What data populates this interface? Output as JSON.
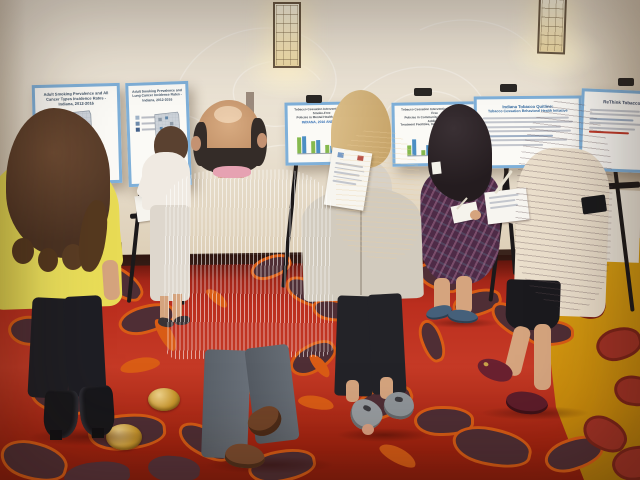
{
  "posters": {
    "p1": {
      "title_lines": [
        "Adult Smoking Prevalence and All",
        "Cancer Types Incidence Rates -",
        "Indiana, 2012-2016"
      ],
      "figure": "indiana-county-map"
    },
    "p2": {
      "title_lines": [
        "Adult Smoking Prevalence and",
        "Lung Cancer Incidence Rates -",
        "Indiana, 2012-2016"
      ],
      "figure": "indiana-county-map"
    },
    "p3": {
      "title_lines": [
        "Tobacco Cessation Interventions and Smoke-Free",
        "Policies in Mental Health Facilities"
      ],
      "subtitle": "INDIANA, 2016 AND 2018",
      "figure": "grouped-bar-chart",
      "bars": [
        [
          62,
          66
        ],
        [
          48,
          50
        ],
        [
          30,
          26
        ],
        [
          22,
          40
        ],
        [
          34,
          58
        ]
      ]
    },
    "p4": {
      "title_lines": [
        "Tobacco Cessation Interventions and Smoke-Free",
        "Policies in Community Mental Health and Addiction",
        "Treatment Facilities, Indiana 2016 vs. May 2019"
      ],
      "figure": "grouped-bar-chart",
      "bars": [
        [
          40,
          62
        ],
        [
          18,
          38
        ],
        [
          14,
          30
        ],
        [
          36,
          58
        ]
      ]
    },
    "p5": {
      "title_lines": [
        "Indiana Tobacco Quitline:",
        "Tobacco Cessation Behavioral Health Initiative"
      ],
      "figure": "text-summary"
    },
    "p6": {
      "title_lines": [
        "ReThink Tobacco"
      ],
      "figure": "text-bullets"
    }
  },
  "colors": {
    "bar_green": "#86b94e",
    "bar_blue": "#4d8fc4",
    "poster_border": "#7fb0d9",
    "carpet_red": "#bb2e1e",
    "carpet_gold": "#d1930f",
    "wall_cream": "#e9e1d2",
    "easel_black": "#1c191a",
    "accent_link": "#c23a2a"
  }
}
